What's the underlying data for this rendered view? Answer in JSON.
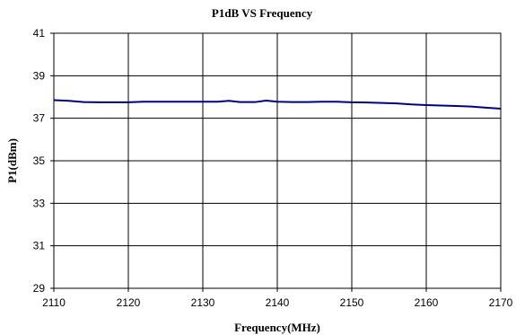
{
  "chart_data": {
    "type": "line",
    "title": "P1dB VS Frequency",
    "xlabel": "Frequency(MHz)",
    "ylabel": "P1(dBm)",
    "xlim": [
      2110,
      2170
    ],
    "ylim": [
      29,
      41
    ],
    "xticks": [
      2110,
      2120,
      2130,
      2140,
      2150,
      2160,
      2170
    ],
    "yticks": [
      29,
      31,
      33,
      35,
      37,
      39,
      41
    ],
    "grid": true,
    "legend": "none",
    "series": [
      {
        "color": "#000080",
        "points": [
          [
            2110,
            37.85
          ],
          [
            2112,
            37.82
          ],
          [
            2114,
            37.76
          ],
          [
            2116,
            37.75
          ],
          [
            2118,
            37.75
          ],
          [
            2120,
            37.75
          ],
          [
            2122,
            37.78
          ],
          [
            2124,
            37.78
          ],
          [
            2126,
            37.78
          ],
          [
            2128,
            37.78
          ],
          [
            2130,
            37.78
          ],
          [
            2132,
            37.78
          ],
          [
            2133.5,
            37.82
          ],
          [
            2135,
            37.76
          ],
          [
            2137,
            37.76
          ],
          [
            2138.5,
            37.83
          ],
          [
            2140,
            37.78
          ],
          [
            2142,
            37.76
          ],
          [
            2144,
            37.76
          ],
          [
            2146,
            37.78
          ],
          [
            2148,
            37.78
          ],
          [
            2150,
            37.75
          ],
          [
            2152,
            37.74
          ],
          [
            2154,
            37.72
          ],
          [
            2156,
            37.7
          ],
          [
            2158,
            37.65
          ],
          [
            2160,
            37.62
          ],
          [
            2162,
            37.6
          ],
          [
            2164,
            37.58
          ],
          [
            2166,
            37.55
          ],
          [
            2168,
            37.5
          ],
          [
            2170,
            37.45
          ]
        ]
      }
    ]
  }
}
